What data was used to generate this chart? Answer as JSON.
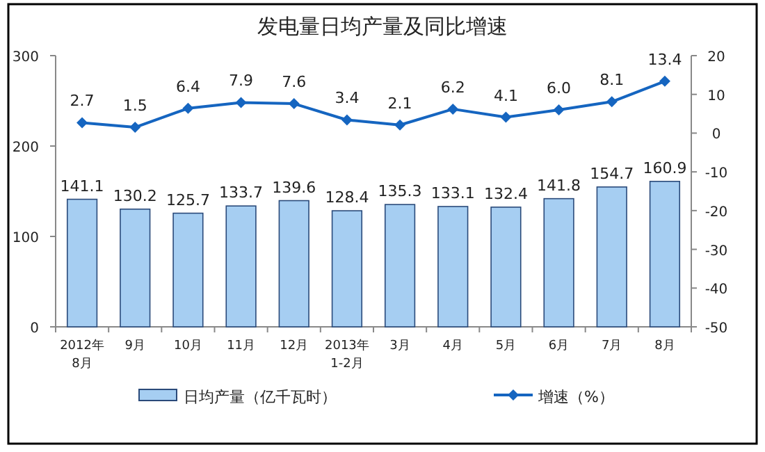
{
  "chart_data": {
    "type": "bar",
    "title": "发电量日均产量及同比增速",
    "categories": [
      "2012年\n8月",
      "9月",
      "10月",
      "11月",
      "12月",
      "2013年\n1-2月",
      "3月",
      "4月",
      "5月",
      "6月",
      "7月",
      "8月"
    ],
    "series": [
      {
        "name": "日均产量（亿千瓦时）",
        "color": "#a6cef2",
        "values": [
          141.1,
          130.2,
          125.7,
          133.7,
          139.6,
          128.4,
          135.3,
          133.1,
          132.4,
          141.8,
          154.7,
          160.9
        ]
      },
      {
        "name": "增速（%）",
        "type": "line",
        "axis": "y2",
        "color": "#1565c0",
        "marker": "diamond",
        "values": [
          2.7,
          1.5,
          6.4,
          7.9,
          7.6,
          3.4,
          2.1,
          6.2,
          4.1,
          6.0,
          8.1,
          13.4
        ],
        "value_labels": [
          "2.7",
          "1.5",
          "6.4",
          "7.9",
          "7.6",
          "3.4",
          "2.1",
          "6.2",
          "4.1",
          "6.0",
          "8.1",
          "13.4"
        ]
      }
    ],
    "ylim": [
      0,
      300
    ],
    "yticks": [
      0,
      100,
      200,
      300
    ],
    "y2lim": [
      -50,
      20
    ],
    "y2ticks": [
      -50,
      -40,
      -30,
      -20,
      -10,
      0,
      10,
      20
    ],
    "data_labels": true,
    "legend": "bottom"
  }
}
